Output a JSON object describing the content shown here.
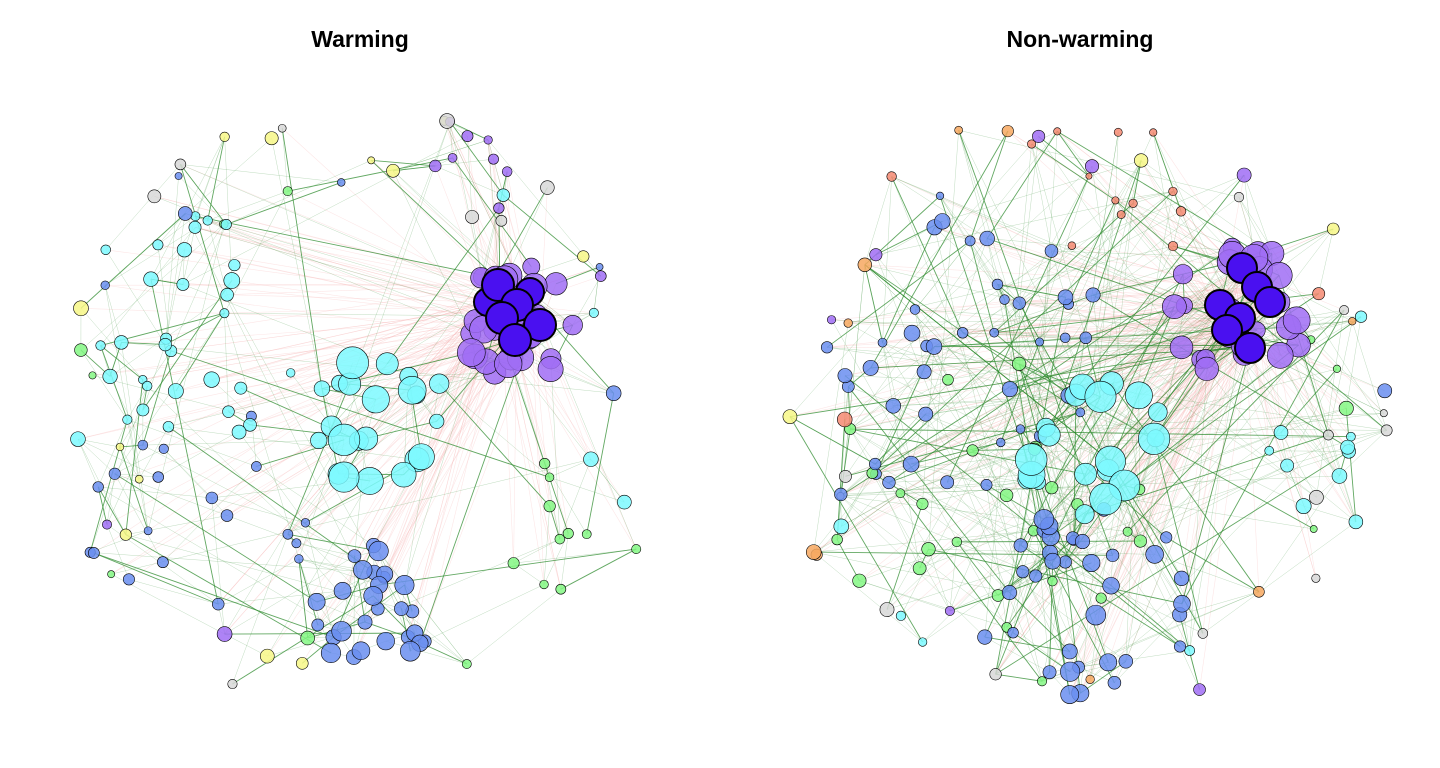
{
  "panels": [
    {
      "title": "Warming",
      "network": {
        "node_colors": [
          "#7df9ff",
          "#6a8ef0",
          "#a06df5",
          "#84f784",
          "#f7f787",
          "#d8d8d8"
        ],
        "hub_color": "#4a10f0",
        "positive_edge_color": "#2e8b2e",
        "negative_edge_color": "#f7b6b6"
      }
    },
    {
      "title": "Non-warming",
      "network": {
        "node_colors": [
          "#7df9ff",
          "#6a8ef0",
          "#a06df5",
          "#84f784",
          "#f7f787",
          "#f48a72",
          "#f7a860",
          "#d8d8d8"
        ],
        "hub_color": "#4a10f0",
        "positive_edge_color": "#2e8b2e",
        "negative_edge_color": "#f7b6b6"
      }
    }
  ]
}
